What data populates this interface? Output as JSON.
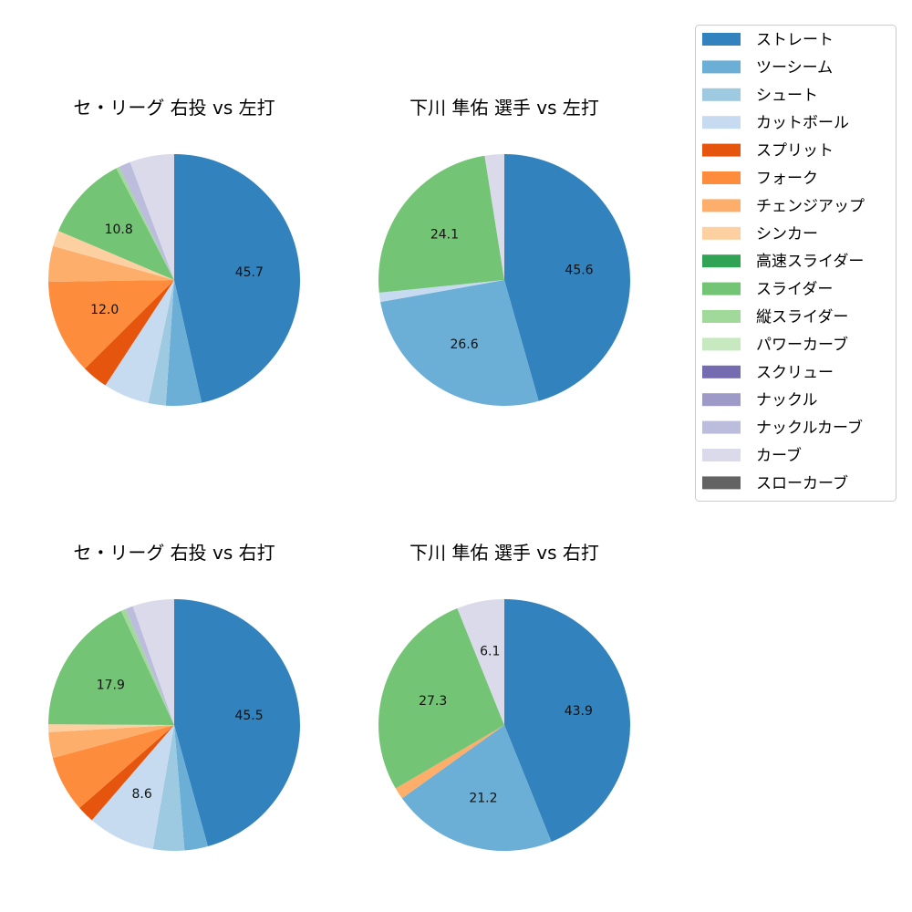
{
  "chart_data": [
    {
      "type": "pie",
      "title": "セ・リーグ 右投 vs 左打",
      "categories": [
        "ストレート",
        "ツーシーム",
        "シュート",
        "カットボール",
        "スプリット",
        "フォーク",
        "チェンジアップ",
        "シンカー",
        "スライダー",
        "縦スライダー",
        "ナックルカーブ",
        "カーブ"
      ],
      "values": [
        45.7,
        4.5,
        2.2,
        5.8,
        3.3,
        12.0,
        4.5,
        2.0,
        10.8,
        0.4,
        1.5,
        5.6
      ],
      "labels": [
        "45.7",
        "",
        "",
        "",
        "",
        "12.0",
        "",
        "",
        "10.8",
        "",
        "",
        ""
      ]
    },
    {
      "type": "pie",
      "title": "下川 隼佑 選手 vs 左打",
      "categories": [
        "ストレート",
        "ツーシーム",
        "カットボール",
        "スライダー",
        "カーブ"
      ],
      "values": [
        45.6,
        26.6,
        1.2,
        24.1,
        2.5
      ],
      "labels": [
        "45.6",
        "26.6",
        "",
        "24.1",
        ""
      ]
    },
    {
      "type": "pie",
      "title": "セ・リーグ 右投 vs 右打",
      "categories": [
        "ストレート",
        "ツーシーム",
        "シュート",
        "カットボール",
        "スプリット",
        "フォーク",
        "チェンジアップ",
        "シンカー",
        "スライダー",
        "縦スライダー",
        "ナックルカーブ",
        "カーブ"
      ],
      "values": [
        45.5,
        3.0,
        4.0,
        8.6,
        2.2,
        7.2,
        3.3,
        1.0,
        17.9,
        0.6,
        1.0,
        5.3
      ],
      "labels": [
        "45.5",
        "",
        "",
        "8.6",
        "",
        "",
        "",
        "",
        "17.9",
        "",
        "",
        ""
      ]
    },
    {
      "type": "pie",
      "title": "下川 隼佑 選手 vs 右打",
      "categories": [
        "ストレート",
        "ツーシーム",
        "チェンジアップ",
        "スライダー",
        "カーブ"
      ],
      "values": [
        43.9,
        21.2,
        1.5,
        27.3,
        6.1
      ],
      "labels": [
        "43.9",
        "21.2",
        "",
        "27.3",
        "6.1"
      ]
    }
  ],
  "legend": {
    "placement": "top-right",
    "entries": [
      {
        "name": "ストレート",
        "color": "#3182bd"
      },
      {
        "name": "ツーシーム",
        "color": "#6baed6"
      },
      {
        "name": "シュート",
        "color": "#9ecae1"
      },
      {
        "name": "カットボール",
        "color": "#c6dbef"
      },
      {
        "name": "スプリット",
        "color": "#e6550d"
      },
      {
        "name": "フォーク",
        "color": "#fd8d3c"
      },
      {
        "name": "チェンジアップ",
        "color": "#fdae6b"
      },
      {
        "name": "シンカー",
        "color": "#fdd0a2"
      },
      {
        "name": "高速スライダー",
        "color": "#31a354"
      },
      {
        "name": "スライダー",
        "color": "#74c476"
      },
      {
        "name": "縦スライダー",
        "color": "#a1d99b"
      },
      {
        "name": "パワーカーブ",
        "color": "#c7e9c0"
      },
      {
        "name": "スクリュー",
        "color": "#756bb1"
      },
      {
        "name": "ナックル",
        "color": "#9e9ac8"
      },
      {
        "name": "ナックルカーブ",
        "color": "#bcbddc"
      },
      {
        "name": "カーブ",
        "color": "#dadaeb"
      },
      {
        "name": "スローカーブ",
        "color": "#636363"
      }
    ]
  }
}
